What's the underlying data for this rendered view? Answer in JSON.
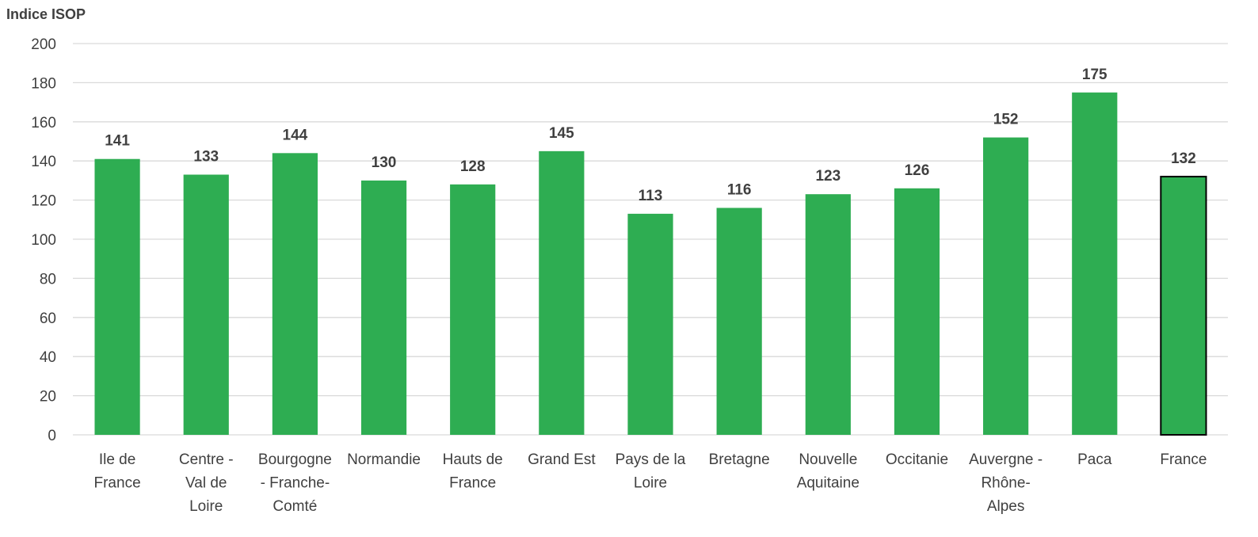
{
  "chart_data": {
    "type": "bar",
    "ylabel": "Indice ISOP",
    "xlabel": "",
    "ylim": [
      0,
      200
    ],
    "yticks": [
      0,
      20,
      40,
      60,
      80,
      100,
      120,
      140,
      160,
      180,
      200
    ],
    "grid": true,
    "categories": [
      "Ile de France",
      "Centre - Val de Loire",
      "Bourgogne - Franche-Comté",
      "Normandie",
      "Hauts de France",
      "Grand Est",
      "Pays de la Loire",
      "Bretagne",
      "Nouvelle Aquitaine",
      "Occitanie",
      "Auvergne - Rhône-Alpes",
      "Paca",
      "France"
    ],
    "category_lines": [
      [
        "Ile de",
        "France"
      ],
      [
        "Centre -",
        "Val de",
        "Loire"
      ],
      [
        "Bourgogne",
        "- Franche-",
        "Comté"
      ],
      [
        "Normandie"
      ],
      [
        "Hauts de",
        "France"
      ],
      [
        "Grand Est"
      ],
      [
        "Pays de la",
        "Loire"
      ],
      [
        "Bretagne"
      ],
      [
        "Nouvelle",
        "Aquitaine"
      ],
      [
        "Occitanie"
      ],
      [
        "Auvergne -",
        "Rhône-",
        "Alpes"
      ],
      [
        "Paca"
      ],
      [
        "France"
      ]
    ],
    "values": [
      141,
      133,
      144,
      130,
      128,
      145,
      113,
      116,
      123,
      126,
      152,
      175,
      132
    ],
    "data_labels": [
      "141",
      "133",
      "144",
      "130",
      "128",
      "145",
      "113",
      "116",
      "123",
      "126",
      "152",
      "175",
      "132"
    ],
    "highlight_index": 12,
    "colors": {
      "bar": "#2ead52",
      "highlight_outline": "#000000",
      "grid": "#d9d9d9",
      "text": "#404040"
    }
  }
}
